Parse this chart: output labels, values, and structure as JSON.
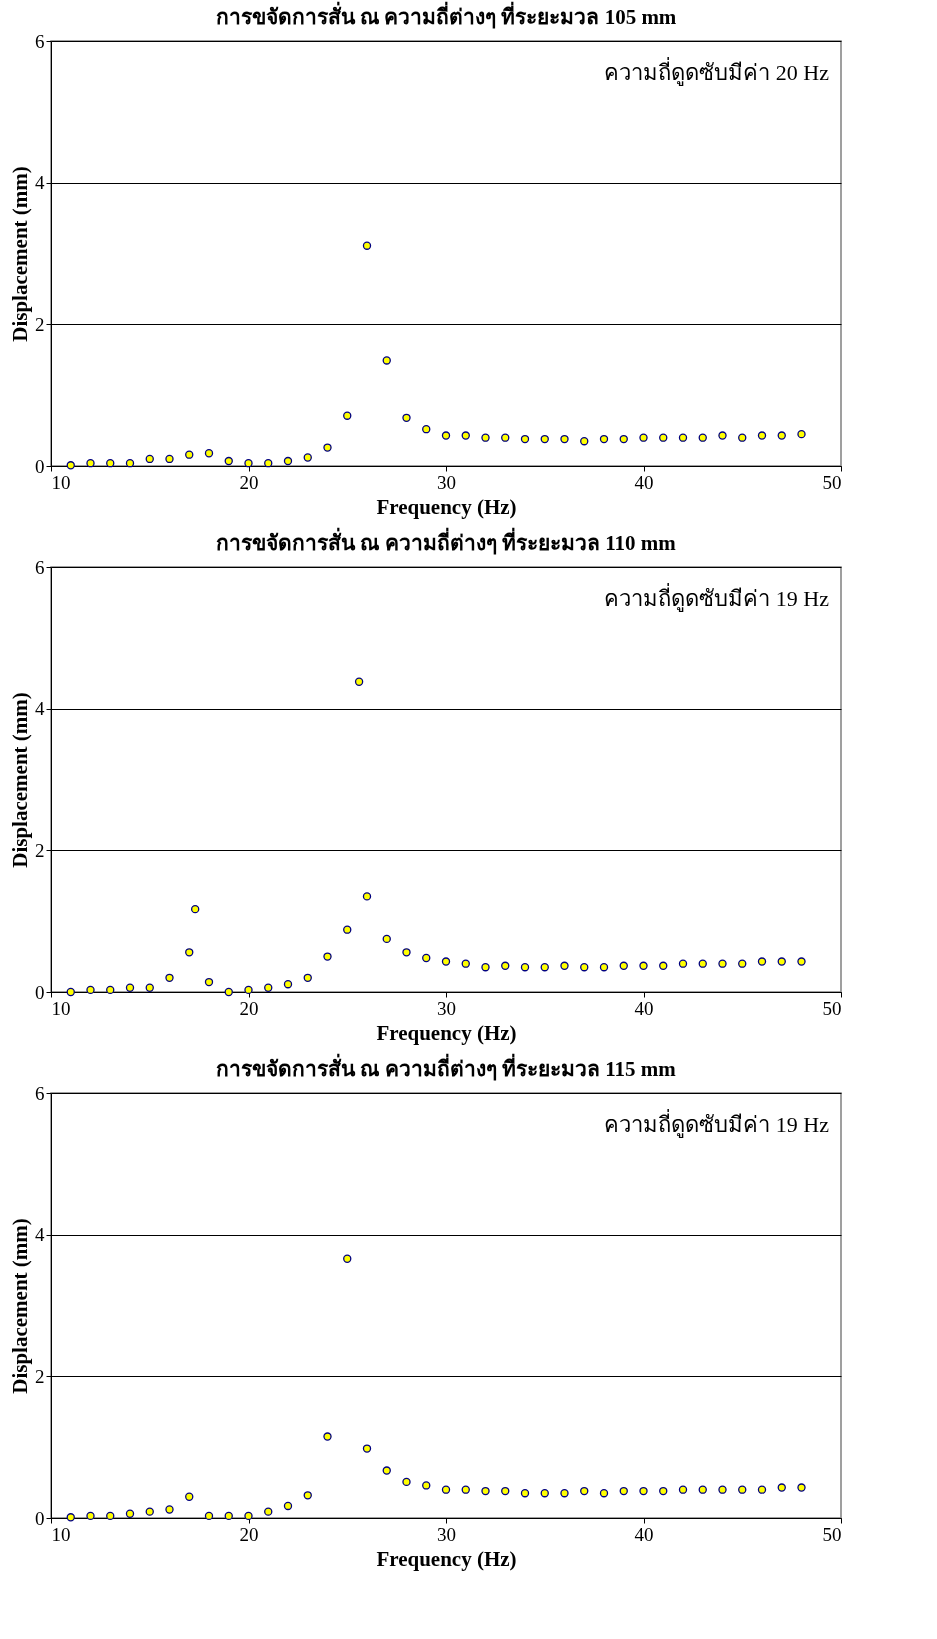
{
  "chart_data": [
    {
      "type": "scatter",
      "title": "การขจัดการสั่น ณ ความถี่ต่างๆ ที่ระยะมวล 105 mm",
      "xlabel": "Frequency (Hz)",
      "ylabel": "Displacement (mm)",
      "annotations": [
        "ความถี่ดูดซับมีค่า 20 Hz"
      ],
      "xlim": [
        10,
        50
      ],
      "xticks": [
        10,
        20,
        30,
        40,
        50
      ],
      "ylim": [
        0,
        6
      ],
      "yticks": [
        0,
        2,
        4,
        6
      ],
      "grid": "y",
      "legend": false,
      "marker": "circle",
      "x": [
        11,
        12,
        13,
        14,
        15,
        16,
        17,
        18,
        19,
        20,
        21,
        22,
        23,
        24,
        25,
        26,
        27,
        28,
        29,
        30,
        31,
        32,
        33,
        34,
        35,
        36,
        37,
        38,
        39,
        40,
        41,
        42,
        43,
        44,
        45,
        46,
        47,
        48
      ],
      "series": [
        {
          "color": "#ffff00",
          "values": [
            0.01,
            0.04,
            0.04,
            0.04,
            0.1,
            0.1,
            0.16,
            0.18,
            0.07,
            0.04,
            0.04,
            0.07,
            0.12,
            0.26,
            0.71,
            3.11,
            1.49,
            0.68,
            0.52,
            0.43,
            0.43,
            0.4,
            0.4,
            0.38,
            0.38,
            0.38,
            0.35,
            0.38,
            0.38,
            0.4,
            0.4,
            0.4,
            0.4,
            0.43,
            0.4,
            0.43,
            0.43,
            0.45
          ]
        }
      ]
    },
    {
      "type": "scatter",
      "title": "การขจัดการสั่น ณ ความถี่ต่างๆ ที่ระยะมวล 110 mm",
      "xlabel": "Frequency (Hz)",
      "ylabel": "Displacement (mm)",
      "annotations": [
        "ความถี่ดูดซับมีค่า 19 Hz"
      ],
      "xlim": [
        10,
        50
      ],
      "xticks": [
        10,
        20,
        30,
        40,
        50
      ],
      "ylim": [
        0,
        6
      ],
      "yticks": [
        0,
        2,
        4,
        6
      ],
      "grid": "y",
      "legend": false,
      "marker": "circle",
      "x": [
        11,
        12,
        13,
        14,
        15,
        16,
        17,
        17.3,
        18,
        19,
        20,
        21,
        22,
        23,
        24,
        25,
        25.6,
        26,
        27,
        28,
        29,
        30,
        31,
        32,
        33,
        34,
        35,
        36,
        37,
        38,
        39,
        40,
        41,
        42,
        43,
        44,
        45,
        46,
        47,
        48
      ],
      "series": [
        {
          "color": "#ffff00",
          "values": [
            0.0,
            0.03,
            0.03,
            0.06,
            0.06,
            0.2,
            0.56,
            1.17,
            0.14,
            0.0,
            0.03,
            0.06,
            0.11,
            0.2,
            0.5,
            0.88,
            4.38,
            1.35,
            0.75,
            0.56,
            0.48,
            0.43,
            0.4,
            0.35,
            0.37,
            0.35,
            0.35,
            0.37,
            0.35,
            0.35,
            0.37,
            0.37,
            0.37,
            0.4,
            0.4,
            0.4,
            0.4,
            0.43,
            0.43,
            0.43
          ]
        }
      ]
    },
    {
      "type": "scatter",
      "title": "การขจัดการสั่น ณ ความถี่ต่างๆ ที่ระยะมวล 115 mm",
      "xlabel": "Frequency (Hz)",
      "ylabel": "Displacement (mm)",
      "annotations": [
        "ความถี่ดูดซับมีค่า 19 Hz"
      ],
      "xlim": [
        10,
        50
      ],
      "xticks": [
        10,
        20,
        30,
        40,
        50
      ],
      "ylim": [
        0,
        6
      ],
      "yticks": [
        0,
        2,
        4,
        6
      ],
      "grid": "y",
      "legend": false,
      "marker": "circle",
      "x": [
        11,
        12,
        13,
        14,
        15,
        16,
        17,
        18,
        19,
        20,
        21,
        22,
        23,
        24,
        25,
        26,
        27,
        28,
        29,
        30,
        31,
        32,
        33,
        34,
        35,
        36,
        37,
        38,
        39,
        40,
        41,
        42,
        43,
        44,
        45,
        46,
        47,
        48
      ],
      "series": [
        {
          "color": "#ffff00",
          "values": [
            0.01,
            0.03,
            0.03,
            0.06,
            0.09,
            0.12,
            0.3,
            0.03,
            0.03,
            0.03,
            0.09,
            0.17,
            0.32,
            1.15,
            3.66,
            0.98,
            0.67,
            0.51,
            0.46,
            0.4,
            0.4,
            0.38,
            0.38,
            0.35,
            0.35,
            0.35,
            0.38,
            0.35,
            0.38,
            0.38,
            0.38,
            0.4,
            0.4,
            0.4,
            0.4,
            0.4,
            0.43,
            0.43
          ]
        }
      ]
    }
  ]
}
